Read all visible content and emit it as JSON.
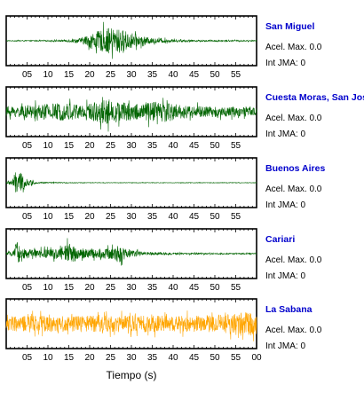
{
  "chart_data": [
    {
      "type": "line",
      "station": "San Miguel",
      "accel_label": "Acel. Max. 0.0",
      "jma_label": "Int JMA: 0",
      "color": "#006400",
      "x_tick_labels": [
        "05",
        "10",
        "15",
        "20",
        "25",
        "30",
        "35",
        "40",
        "45",
        "50",
        "55"
      ],
      "envelope": [
        [
          0,
          0.03
        ],
        [
          10,
          0.04
        ],
        [
          14,
          0.07
        ],
        [
          18,
          0.2
        ],
        [
          21,
          0.6
        ],
        [
          23,
          0.8
        ],
        [
          25,
          0.95
        ],
        [
          27,
          0.85
        ],
        [
          29,
          0.7
        ],
        [
          32,
          0.35
        ],
        [
          35,
          0.2
        ],
        [
          40,
          0.1
        ],
        [
          45,
          0.06
        ],
        [
          60,
          0.04
        ]
      ]
    },
    {
      "type": "line",
      "station": "Cuesta Moras, San Jose",
      "accel_label": "Acel. Max. 0.0",
      "jma_label": "Int JMA: 0",
      "color": "#006400",
      "x_tick_labels": [
        "05",
        "10",
        "15",
        "20",
        "25",
        "30",
        "35",
        "40",
        "45",
        "50",
        "55"
      ],
      "envelope": [
        [
          0,
          0.35
        ],
        [
          5,
          0.45
        ],
        [
          10,
          0.6
        ],
        [
          15,
          0.65
        ],
        [
          20,
          0.6
        ],
        [
          24,
          0.95
        ],
        [
          26,
          0.75
        ],
        [
          30,
          0.65
        ],
        [
          35,
          0.7
        ],
        [
          38,
          0.8
        ],
        [
          42,
          0.5
        ],
        [
          48,
          0.4
        ],
        [
          60,
          0.3
        ]
      ]
    },
    {
      "type": "line",
      "station": "Buenos Aires",
      "accel_label": "Acel. Max. 0.0",
      "jma_label": "Int JMA: 0",
      "color": "#006400",
      "x_tick_labels": [
        "05",
        "10",
        "15",
        "20",
        "25",
        "30",
        "35",
        "40",
        "45",
        "50",
        "55"
      ],
      "envelope": [
        [
          0,
          0.05
        ],
        [
          1.5,
          0.3
        ],
        [
          2.5,
          0.95
        ],
        [
          3.5,
          0.7
        ],
        [
          5,
          0.25
        ],
        [
          7,
          0.08
        ],
        [
          10,
          0.04
        ],
        [
          20,
          0.02
        ],
        [
          60,
          0.02
        ]
      ]
    },
    {
      "type": "line",
      "station": "Cariari",
      "accel_label": "Acel. Max. 0.0",
      "jma_label": "Int JMA: 0",
      "color": "#006400",
      "x_tick_labels": [
        "05",
        "10",
        "15",
        "20",
        "25",
        "30",
        "35",
        "40",
        "45",
        "50",
        "55"
      ],
      "envelope": [
        [
          0,
          0.1
        ],
        [
          1.8,
          0.2
        ],
        [
          2.5,
          0.95
        ],
        [
          3.5,
          0.4
        ],
        [
          6,
          0.3
        ],
        [
          10,
          0.35
        ],
        [
          13,
          0.4
        ],
        [
          15,
          0.75
        ],
        [
          17,
          0.45
        ],
        [
          20,
          0.3
        ],
        [
          25,
          0.4
        ],
        [
          27,
          0.65
        ],
        [
          29,
          0.3
        ],
        [
          33,
          0.12
        ],
        [
          40,
          0.06
        ],
        [
          60,
          0.04
        ]
      ]
    },
    {
      "type": "line",
      "station": "La Sabana",
      "accel_label": "Acel. Max. 0.0",
      "jma_label": "Int JMA: 0",
      "color": "#FFA500",
      "x_tick_labels": [
        "05",
        "10",
        "15",
        "20",
        "25",
        "30",
        "35",
        "40",
        "45",
        "50",
        "55",
        "00"
      ],
      "xlabel": "Tiempo (s)",
      "envelope": [
        [
          0,
          0.55
        ],
        [
          10,
          0.6
        ],
        [
          20,
          0.6
        ],
        [
          30,
          0.6
        ],
        [
          40,
          0.6
        ],
        [
          50,
          0.6
        ],
        [
          56,
          0.9
        ],
        [
          58,
          0.95
        ],
        [
          60,
          0.7
        ]
      ]
    }
  ],
  "colors": {
    "station_label": "#0000CC",
    "frame": "#000000"
  }
}
